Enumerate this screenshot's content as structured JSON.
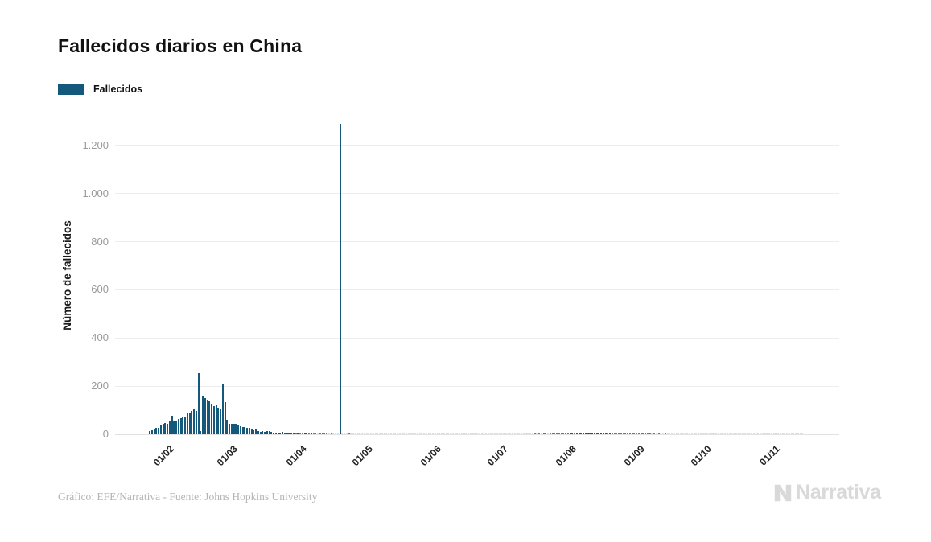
{
  "title": "Fallecidos diarios en China",
  "legend": {
    "label": "Fallecidos",
    "swatch_color": "#14597c"
  },
  "y_axis": {
    "title": "Número de fallecidos"
  },
  "footer": {
    "credit": "Gráfico: EFE/Narrativa - Fuente: Johns Hopkins University"
  },
  "logo": {
    "text": "Narrativa"
  },
  "chart_data": {
    "type": "bar",
    "title": "Fallecidos diarios en China",
    "series_name": "Fallecidos",
    "xlabel": "",
    "ylabel": "Número de fallecidos",
    "ylim": [
      0,
      1320
    ],
    "grid": "horizontal",
    "legend_position": "top-left",
    "bar_color": "#14597c",
    "start_date": "22/01/2020",
    "frequency": "daily",
    "yticks": [
      {
        "value": 0,
        "label": "0"
      },
      {
        "value": 200,
        "label": "200"
      },
      {
        "value": 400,
        "label": "400"
      },
      {
        "value": 600,
        "label": "600"
      },
      {
        "value": 800,
        "label": "800"
      },
      {
        "value": 1000,
        "label": "1.000"
      },
      {
        "value": 1200,
        "label": "1.200"
      }
    ],
    "xticks": [
      {
        "label": "01/02",
        "day_index": 10
      },
      {
        "label": "01/03",
        "day_index": 39
      },
      {
        "label": "01/04",
        "day_index": 70
      },
      {
        "label": "01/05",
        "day_index": 100
      },
      {
        "label": "01/06",
        "day_index": 131
      },
      {
        "label": "01/07",
        "day_index": 161
      },
      {
        "label": "01/08",
        "day_index": 192
      },
      {
        "label": "01/09",
        "day_index": 223
      },
      {
        "label": "01/10",
        "day_index": 253
      },
      {
        "label": "01/11",
        "day_index": 284
      }
    ],
    "notable_points": [
      {
        "date": "13/02/2020",
        "value": 254
      },
      {
        "date": "17/04/2020",
        "value": 1290
      }
    ],
    "values": [
      13,
      18,
      24,
      26,
      26,
      38,
      43,
      46,
      45,
      58,
      77,
      55,
      58,
      64,
      66,
      73,
      73,
      86,
      89,
      97,
      108,
      97,
      254,
      13,
      160,
      150,
      140,
      136,
      125,
      118,
      122,
      112,
      105,
      210,
      135,
      60,
      45,
      42,
      45,
      42,
      38,
      35,
      31,
      30,
      28,
      27,
      22,
      17,
      22,
      13,
      11,
      13,
      10,
      14,
      13,
      11,
      8,
      5,
      7,
      6,
      9,
      7,
      4,
      6,
      5,
      5,
      3,
      5,
      2,
      1,
      7,
      4,
      3,
      4,
      3,
      1,
      0,
      2,
      1,
      1,
      1,
      0,
      1,
      0,
      0,
      0,
      1290,
      0,
      0,
      0,
      1,
      0,
      0,
      0,
      0,
      0,
      0,
      0,
      0,
      0,
      0,
      0,
      0,
      0,
      0,
      0,
      0,
      0,
      0,
      0,
      0,
      0,
      0,
      0,
      0,
      0,
      0,
      0,
      0,
      0,
      0,
      0,
      0,
      0,
      0,
      0,
      0,
      0,
      0,
      0,
      0,
      0,
      0,
      0,
      0,
      0,
      0,
      0,
      0,
      0,
      0,
      0,
      0,
      0,
      0,
      0,
      0,
      0,
      0,
      0,
      0,
      0,
      0,
      0,
      0,
      0,
      0,
      0,
      0,
      0,
      0,
      0,
      0,
      0,
      0,
      0,
      0,
      0,
      0,
      0,
      0,
      0,
      0,
      0,
      1,
      0,
      1,
      0,
      1,
      1,
      0,
      1,
      2,
      1,
      2,
      1,
      2,
      2,
      3,
      3,
      4,
      5,
      3,
      4,
      5,
      6,
      5,
      4,
      5,
      6,
      7,
      5,
      6,
      5,
      4,
      5,
      4,
      3,
      4,
      3,
      3,
      2,
      2,
      2,
      1,
      2,
      1,
      1,
      1,
      1,
      1,
      1,
      2,
      1,
      1,
      1,
      1,
      0,
      1,
      0,
      1,
      0,
      0,
      1,
      0,
      0,
      0,
      0,
      0,
      0,
      0,
      0,
      0,
      0,
      0,
      0,
      0,
      0,
      0,
      0,
      0,
      0,
      0,
      0,
      0,
      0,
      0,
      0,
      0,
      0,
      0,
      0,
      0,
      0,
      0,
      0,
      0,
      0,
      0,
      0,
      0,
      0,
      0,
      0,
      0,
      0,
      0,
      0,
      0,
      0,
      0,
      0,
      0,
      0,
      0,
      0,
      0,
      0,
      0,
      0,
      0,
      0,
      0,
      0,
      0,
      0
    ]
  }
}
